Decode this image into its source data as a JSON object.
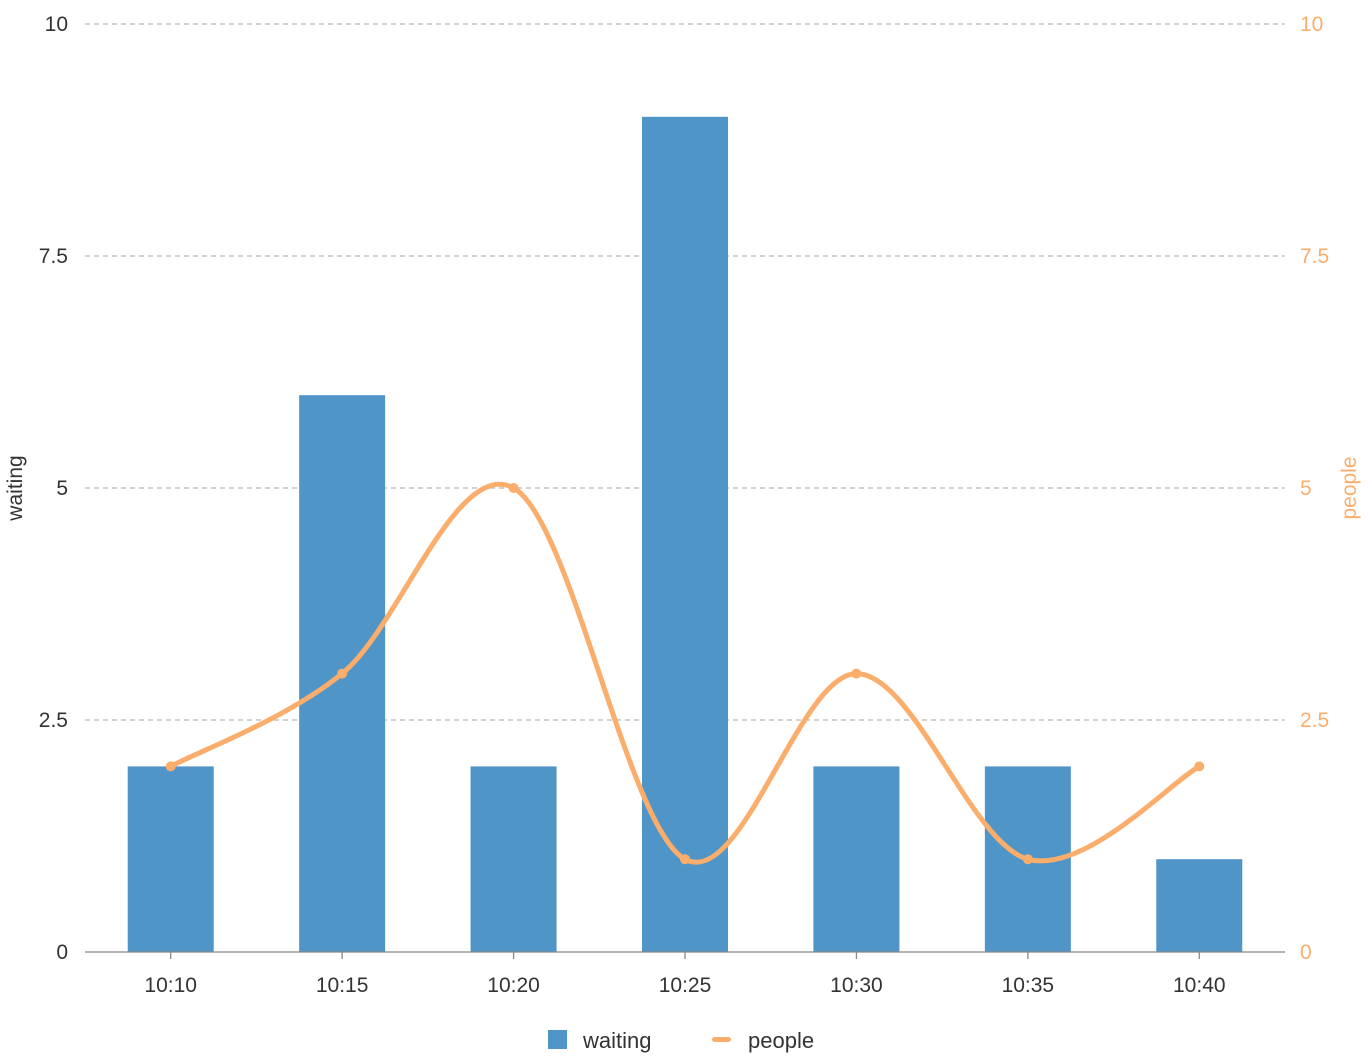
{
  "chart_data": {
    "type": "bar",
    "categories": [
      "10:10",
      "10:15",
      "10:20",
      "10:25",
      "10:30",
      "10:35",
      "10:40"
    ],
    "series": [
      {
        "name": "waiting",
        "type": "bar",
        "axis": "left",
        "values": [
          2,
          6,
          2,
          9,
          2,
          2,
          1
        ],
        "color": "#4f95c8"
      },
      {
        "name": "people",
        "type": "line",
        "smooth": true,
        "axis": "right",
        "values": [
          2,
          3,
          5,
          1,
          3,
          1,
          2
        ],
        "color": "#fbad6b"
      }
    ],
    "y_left": {
      "label": "waiting",
      "lim": [
        0,
        10
      ],
      "ticks": [
        "0",
        "2.5",
        "5",
        "7.5",
        "10"
      ]
    },
    "y_right": {
      "label": "people",
      "lim": [
        0,
        10
      ],
      "ticks": [
        "0",
        "2.5",
        "5",
        "7.5",
        "10"
      ],
      "color": "#fbad6b"
    },
    "grid": true,
    "legend": {
      "position": "bottom",
      "items": [
        "waiting",
        "people"
      ]
    }
  }
}
